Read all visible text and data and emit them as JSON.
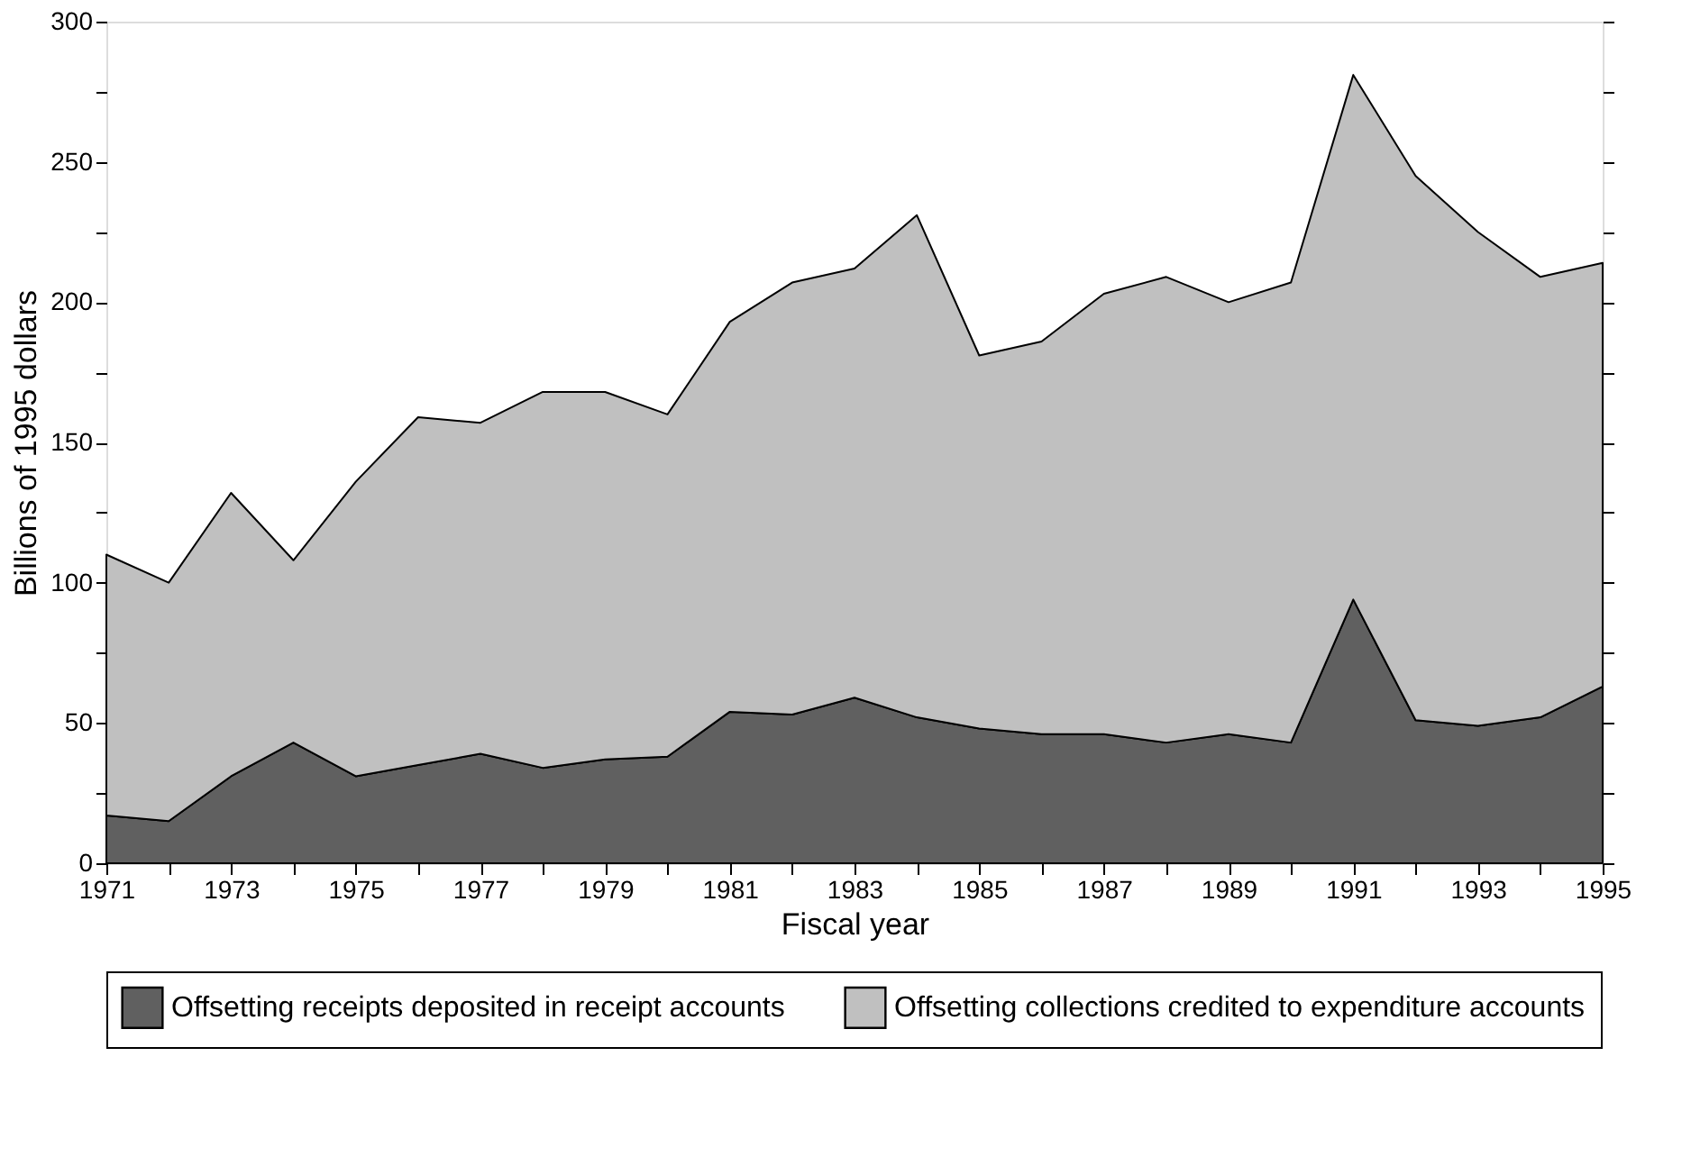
{
  "chart_data": {
    "type": "area",
    "stacked": true,
    "xlabel": "Fiscal year",
    "ylabel": "Billions of 1995 dollars",
    "x": [
      1971,
      1972,
      1973,
      1974,
      1975,
      1976,
      1977,
      1978,
      1979,
      1980,
      1981,
      1982,
      1983,
      1984,
      1985,
      1986,
      1987,
      1988,
      1989,
      1990,
      1991,
      1992,
      1993,
      1994,
      1995
    ],
    "series": [
      {
        "name": "Offsetting receipts deposited in receipt accounts",
        "color": "#606060",
        "values": [
          17,
          15,
          31,
          43,
          31,
          35,
          39,
          34,
          37,
          38,
          54,
          53,
          59,
          52,
          48,
          46,
          46,
          43,
          46,
          43,
          94,
          51,
          49,
          52,
          63
        ]
      },
      {
        "name": "Offsetting collections credited to expenditure accounts",
        "color": "#c0c0c0",
        "values": [
          93,
          85,
          101,
          65,
          105,
          124,
          118,
          134,
          131,
          122,
          139,
          154,
          153,
          179,
          133,
          140,
          157,
          166,
          154,
          164,
          187,
          194,
          176,
          157,
          151
        ]
      }
    ],
    "xlim": [
      1971,
      1995
    ],
    "xticks": [
      1971,
      {
        "value": 1972,
        "label": null
      },
      1973,
      {
        "value": 1974,
        "label": null
      },
      1975,
      {
        "value": 1976,
        "label": null
      },
      1977,
      {
        "value": 1978,
        "label": null
      },
      1979,
      {
        "value": 1980,
        "label": null
      },
      1981,
      {
        "value": 1982,
        "label": null
      },
      1983,
      {
        "value": 1984,
        "label": null
      },
      1985,
      {
        "value": 1986,
        "label": null
      },
      1987,
      {
        "value": 1988,
        "label": null
      },
      1989,
      {
        "value": 1990,
        "label": null
      },
      1991,
      {
        "value": 1992,
        "label": null
      },
      1993,
      {
        "value": 1994,
        "label": null
      },
      1995
    ],
    "ylim": [
      0,
      300
    ],
    "yticks": [
      0,
      {
        "value": 25,
        "label": null
      },
      50,
      {
        "value": 75,
        "label": null
      },
      100,
      {
        "value": 125,
        "label": null
      },
      150,
      {
        "value": 175,
        "label": null
      },
      200,
      {
        "value": 225,
        "label": null
      },
      250,
      {
        "value": 275,
        "label": null
      },
      300
    ],
    "grid": false,
    "legend": "bottom"
  }
}
